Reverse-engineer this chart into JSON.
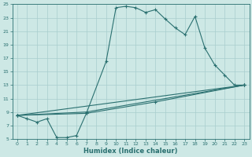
{
  "xlabel": "Humidex (Indice chaleur)",
  "xlim": [
    -0.5,
    23.5
  ],
  "ylim": [
    5,
    25
  ],
  "xticks": [
    0,
    1,
    2,
    3,
    4,
    5,
    6,
    7,
    8,
    9,
    10,
    11,
    12,
    13,
    14,
    15,
    16,
    17,
    18,
    19,
    20,
    21,
    22,
    23
  ],
  "yticks": [
    5,
    7,
    9,
    11,
    13,
    15,
    17,
    19,
    21,
    23,
    25
  ],
  "bg_color": "#cde8e5",
  "line_color": "#2a7070",
  "grid_color": "#a8cece",
  "series_main": [
    [
      0,
      8.5
    ],
    [
      1,
      8.0
    ],
    [
      2,
      7.5
    ],
    [
      3,
      8.0
    ],
    [
      4,
      5.2
    ],
    [
      5,
      5.2
    ],
    [
      6,
      5.5
    ],
    [
      7,
      8.8
    ],
    [
      9,
      16.5
    ],
    [
      10,
      24.5
    ],
    [
      11,
      24.7
    ],
    [
      12,
      24.5
    ],
    [
      13,
      23.8
    ],
    [
      14,
      24.2
    ],
    [
      15,
      22.8
    ],
    [
      16,
      21.5
    ],
    [
      17,
      20.5
    ],
    [
      18,
      23.2
    ],
    [
      19,
      18.5
    ],
    [
      20,
      16.0
    ],
    [
      21,
      14.5
    ],
    [
      22,
      13.0
    ],
    [
      23,
      13.0
    ]
  ],
  "series_line1": [
    [
      0,
      8.5
    ],
    [
      23,
      13.0
    ]
  ],
  "series_line2": [
    [
      0,
      8.5
    ],
    [
      7,
      9.0
    ],
    [
      23,
      13.0
    ]
  ],
  "series_line3": [
    [
      0,
      8.5
    ],
    [
      7,
      8.8
    ],
    [
      14,
      10.5
    ],
    [
      23,
      13.0
    ]
  ]
}
